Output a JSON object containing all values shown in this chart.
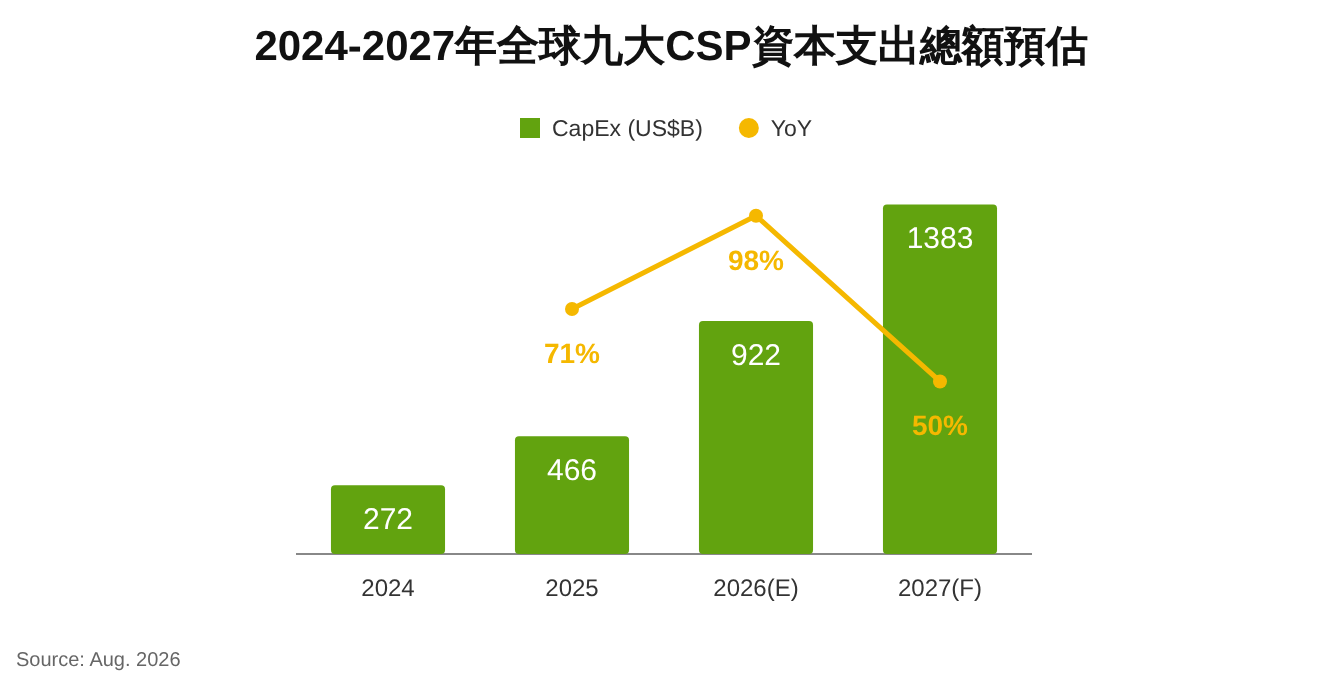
{
  "chart_data": {
    "type": "bar",
    "title": "2024-2027年全球九大CSP資本支出總額預估",
    "categories": [
      "2024",
      "2025",
      "2026(E)",
      "2027(F)"
    ],
    "series": [
      {
        "name": "CapEx (US$B)",
        "color": "#62a30f",
        "values": [
          272,
          466,
          922,
          1383
        ]
      },
      {
        "name": "YoY",
        "type": "line",
        "axis": "y2",
        "color": "#f5b800",
        "values": [
          null,
          71,
          98,
          50
        ],
        "value_labels": [
          null,
          "71%",
          "98%",
          "50%"
        ]
      }
    ],
    "data_labels": true,
    "tick_labels": "x",
    "grid": false,
    "legend": "top",
    "marker": "circle",
    "annotations": [
      "Source: Aug. 2026"
    ]
  }
}
